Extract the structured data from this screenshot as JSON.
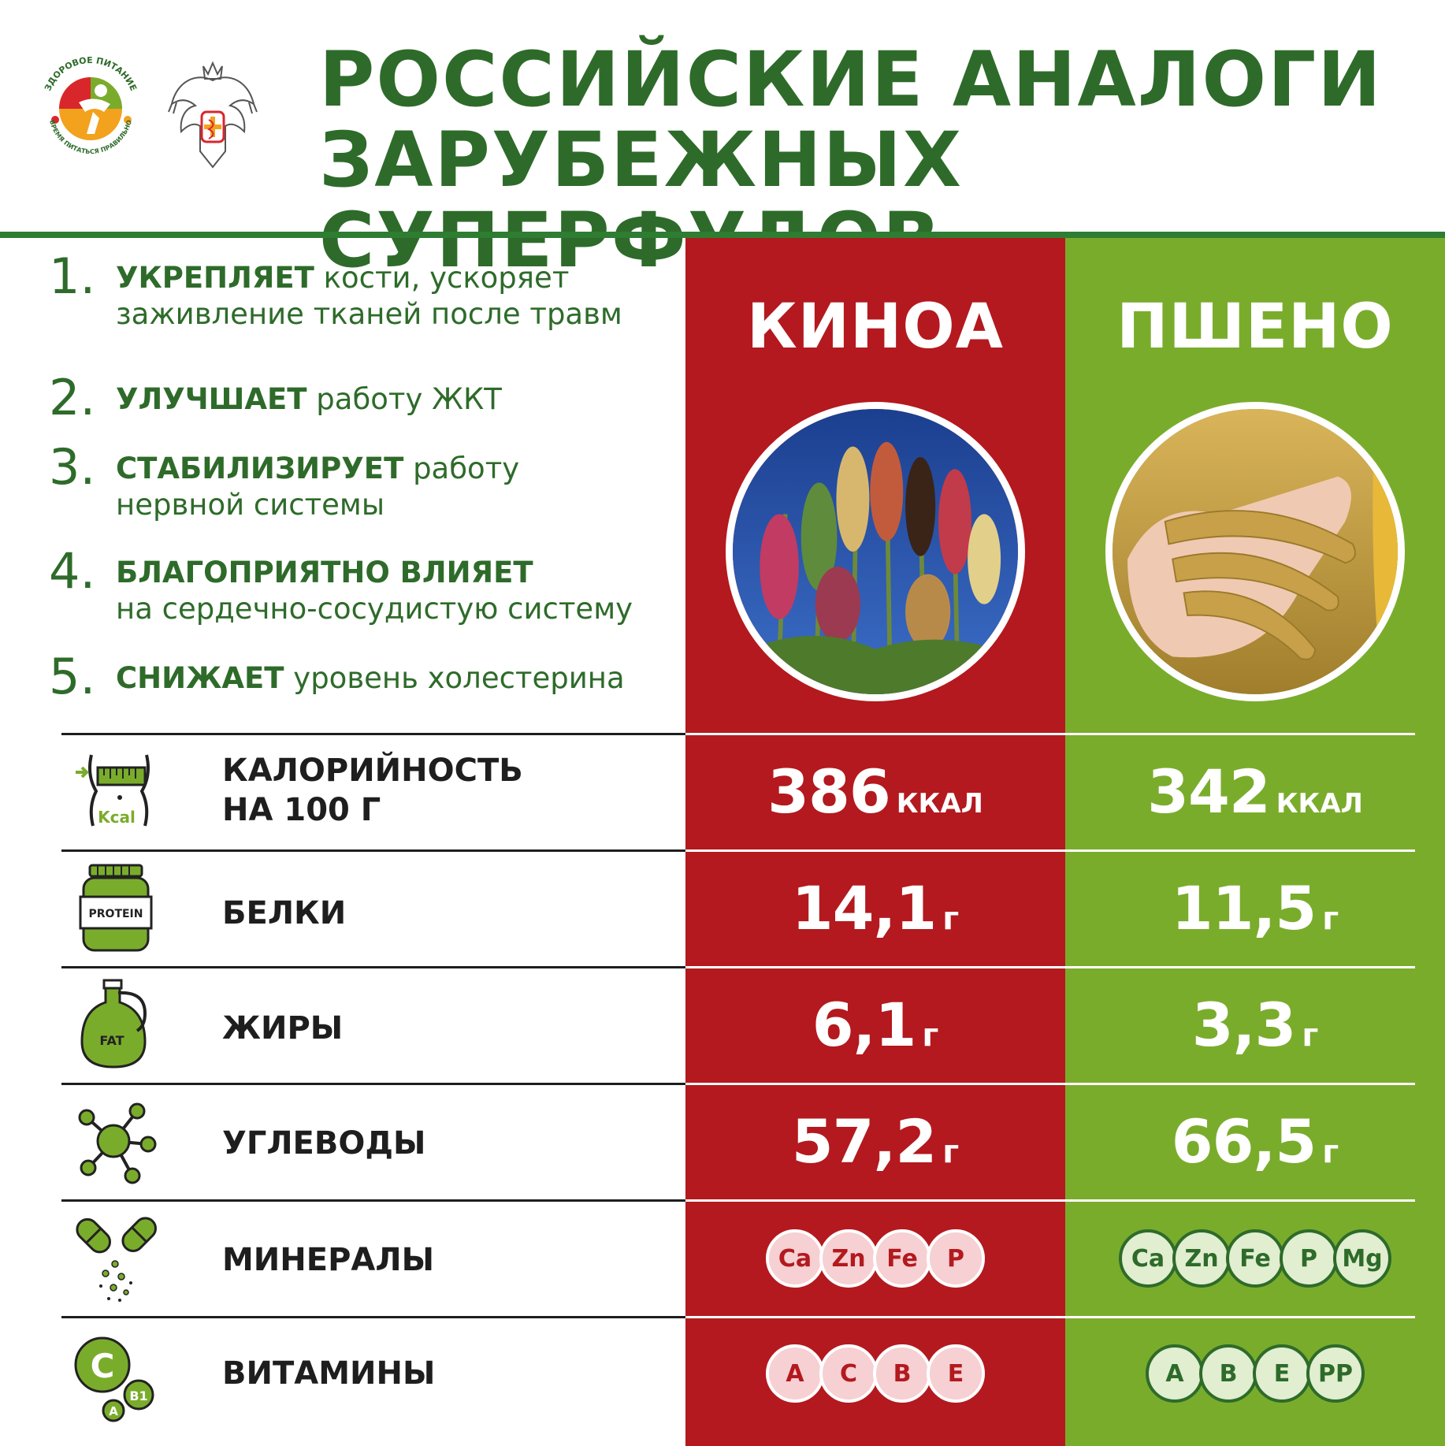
{
  "header": {
    "title_line1": "РОССИЙСКИЕ АНАЛОГИ",
    "title_line2": "ЗАРУБЕЖНЫХ СУПЕРФУДОВ",
    "logo_text_top": "ЗДОРОВОЕ ПИТАНИЕ",
    "logo_text_bottom": "ВРЕМЯ ПИТАТЬСЯ ПРАВИЛЬНО"
  },
  "products": {
    "left": "КИНОА",
    "right": "ПШЕНО"
  },
  "benefits": [
    {
      "num": "1.",
      "bold": "УКРЕПЛЯЕТ",
      "text": " кости, ускоряет",
      "text2": "заживление тканей после травм"
    },
    {
      "num": "2.",
      "bold": "УЛУЧШАЕТ",
      "text": " работу ЖКТ"
    },
    {
      "num": "3.",
      "bold": "СТАБИЛИЗИРУЕТ",
      "text": " работу",
      "text2": "нервной системы"
    },
    {
      "num": "4.",
      "bold": "БЛАГОПРИЯТНО ВЛИЯЕТ",
      "text": "",
      "text2": "на сердечно-сосудистую систему"
    },
    {
      "num": "5.",
      "bold": "СНИЖАЕТ",
      "text": " уровень холестерина"
    }
  ],
  "rows": {
    "calories": {
      "label1": "КАЛОРИЙНОСТЬ",
      "label2": "НА 100 Г",
      "icon_text": "Kcal",
      "left": "386",
      "right": "342",
      "unit": "ККАЛ"
    },
    "protein": {
      "label": "БЕЛКИ",
      "icon_text": "PROTEIN",
      "left": "14,1",
      "right": "11,5",
      "unit": "г"
    },
    "fat": {
      "label": "ЖИРЫ",
      "icon_text": "FAT",
      "left": "6,1",
      "right": "3,3",
      "unit": "г"
    },
    "carbs": {
      "label": "УГЛЕВОДЫ",
      "left": "57,2",
      "right": "66,5",
      "unit": "г"
    },
    "minerals": {
      "label": "МИНЕРАЛЫ",
      "left": [
        "Ca",
        "Zn",
        "Fe",
        "P"
      ],
      "right": [
        "Ca",
        "Zn",
        "Fe",
        "P",
        "Mg"
      ]
    },
    "vitamins": {
      "label": "ВИТАМИНЫ",
      "icon_text_c": "C",
      "icon_text_b": "B1",
      "icon_text_a": "A",
      "left": [
        "A",
        "C",
        "B",
        "E"
      ],
      "right": [
        "A",
        "B",
        "E",
        "PP"
      ]
    }
  },
  "colors": {
    "green_dark": "#2e6b2a",
    "red": "#b3191e",
    "green": "#7aac2c"
  }
}
